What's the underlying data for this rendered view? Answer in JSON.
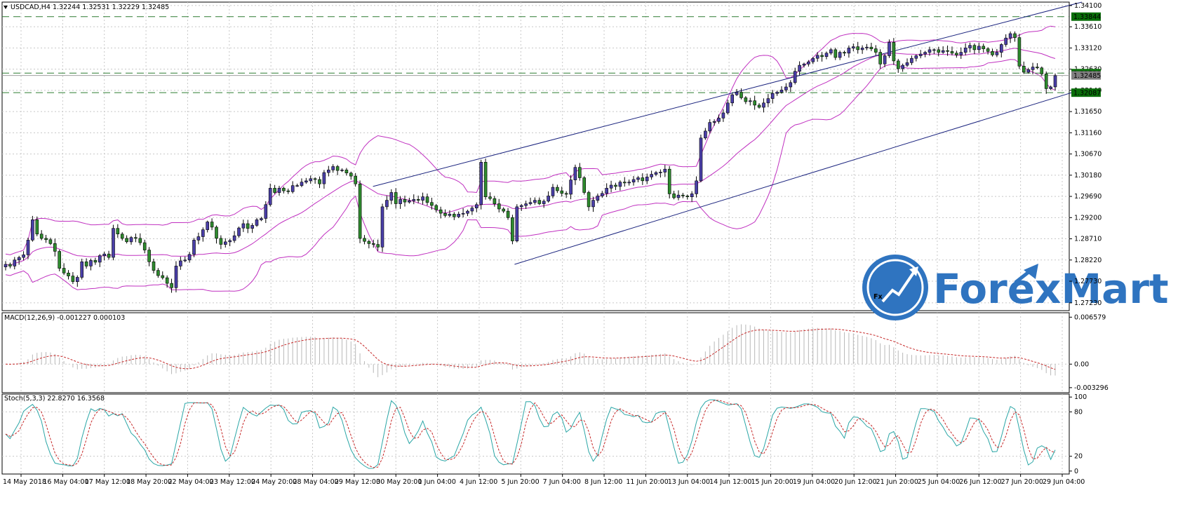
{
  "chart_data": {
    "type": "candlestick",
    "symbol": "USDCAD,H4",
    "ohlc_header": "1.32244 1.32531 1.32229 1.32485",
    "title": "USDCAD,H4  1.32244 1.32531 1.32229 1.32485",
    "price_ylim": [
      1.2705,
      1.3418
    ],
    "price_ticks": [
      "1.34100",
      "1.33610",
      "1.33120",
      "1.32630",
      "1.32140",
      "1.31650",
      "1.31160",
      "1.30670",
      "1.30180",
      "1.29690",
      "1.29200",
      "1.28710",
      "1.28220",
      "1.27730",
      "1.27230"
    ],
    "price_tick_values": [
      1.341,
      1.3361,
      1.3312,
      1.3263,
      1.3214,
      1.3165,
      1.3116,
      1.3067,
      1.3018,
      1.2969,
      1.292,
      1.2871,
      1.2822,
      1.2773,
      1.2723
    ],
    "price_labels": [
      {
        "text": "1.33844",
        "value": 1.33844,
        "color": "#0a6e0a"
      },
      {
        "text": "1.32539",
        "value": 1.32539,
        "color": "#0a6e0a"
      },
      {
        "text": "1.32485",
        "value": 1.32485,
        "color": "#808080"
      },
      {
        "text": "1.32087",
        "value": 1.32087,
        "color": "#0a6e0a"
      }
    ],
    "horizontal_levels": [
      1.33844,
      1.32539,
      1.32087
    ],
    "current_price": 1.32485,
    "channel_lines": [
      {
        "from": [
          "30 May 04:00",
          1.2992
        ],
        "to": [
          "29 Jun 04:00",
          1.3418
        ]
      },
      {
        "from": [
          "5 Jun 08:00",
          1.2812
        ],
        "to": [
          "29 Jun 04:00",
          1.3216
        ]
      }
    ],
    "x_labels": [
      "14 May 2018",
      "16 May 04:00",
      "17 May 12:00",
      "18 May 20:00",
      "22 May 04:00",
      "23 May 12:00",
      "24 May 20:00",
      "28 May 04:00",
      "29 May 12:00",
      "30 May 20:00",
      "1 Jun 04:00",
      "4 Jun 12:00",
      "5 Jun 20:00",
      "7 Jun 04:00",
      "8 Jun 12:00",
      "11 Jun 20:00",
      "13 Jun 04:00",
      "14 Jun 12:00",
      "15 Jun 20:00",
      "19 Jun 04:00",
      "20 Jun 12:00",
      "21 Jun 20:00",
      "25 Jun 04:00",
      "26 Jun 12:00",
      "27 Jun 20:00",
      "29 Jun 04:00"
    ],
    "candles_close": [
      1.2812,
      1.2808,
      1.2822,
      1.2828,
      1.2834,
      1.2868,
      1.2915,
      1.2882,
      1.2872,
      1.2869,
      1.286,
      1.2842,
      1.2803,
      1.2792,
      1.2785,
      1.2772,
      1.2782,
      1.2818,
      1.2808,
      1.2821,
      1.2817,
      1.2832,
      1.2836,
      1.2828,
      1.2895,
      1.2882,
      1.2872,
      1.2864,
      1.2874,
      1.2872,
      1.2862,
      1.2845,
      1.2818,
      1.2798,
      1.2786,
      1.2781,
      1.2768,
      1.2758,
      1.2808,
      1.282,
      1.2822,
      1.2835,
      1.2868,
      1.2876,
      1.2892,
      1.291,
      1.2898,
      1.2872,
      1.2858,
      1.2864,
      1.2867,
      1.2878,
      1.2896,
      1.2906,
      1.2895,
      1.2902,
      1.2915,
      1.2918,
      1.295,
      1.2988,
      1.2978,
      1.2988,
      1.2982,
      1.298,
      1.2994,
      1.2994,
      1.3002,
      1.3005,
      1.301,
      1.3008,
      1.2998,
      1.3024,
      1.303,
      1.3038,
      1.3029,
      1.303,
      1.3023,
      1.3016,
      1.2998,
      1.2872,
      1.2865,
      1.286,
      1.2858,
      1.2852,
      1.2945,
      1.296,
      1.2978,
      1.2952,
      1.2962,
      1.2956,
      1.2959,
      1.2962,
      1.296,
      1.2968,
      1.2955,
      1.2948,
      1.2938,
      1.293,
      1.2925,
      1.2928,
      1.2922,
      1.2928,
      1.293,
      1.2935,
      1.2942,
      1.295,
      1.3048,
      1.2968,
      1.2964,
      1.2952,
      1.294,
      1.2935,
      1.292,
      1.2866,
      1.2945,
      1.2948,
      1.2952,
      1.2955,
      1.296,
      1.2952,
      1.2958,
      1.297,
      1.299,
      1.2982,
      1.2976,
      1.2974,
      1.3007,
      1.3036,
      1.3012,
      1.2978,
      1.2945,
      1.296,
      1.297,
      1.2976,
      1.2988,
      1.2995,
      1.2992,
      1.3002,
      1.3,
      1.3002,
      1.3008,
      1.3012,
      1.3005,
      1.3014,
      1.302,
      1.3024,
      1.3025,
      1.3032,
      1.2975,
      1.2966,
      1.2972,
      1.297,
      1.2968,
      1.2975,
      1.3005,
      1.3104,
      1.312,
      1.314,
      1.3142,
      1.315,
      1.3162,
      1.3185,
      1.3204,
      1.321,
      1.3197,
      1.3188,
      1.319,
      1.318,
      1.3175,
      1.3185,
      1.3195,
      1.3207,
      1.321,
      1.3215,
      1.3222,
      1.3232,
      1.3258,
      1.3272,
      1.3275,
      1.328,
      1.3288,
      1.3295,
      1.3292,
      1.33,
      1.3308,
      1.329,
      1.3302,
      1.33,
      1.3312,
      1.3315,
      1.3308,
      1.3312,
      1.3314,
      1.331,
      1.3302,
      1.3275,
      1.3294,
      1.3325,
      1.3282,
      1.3264,
      1.3272,
      1.3278,
      1.3288,
      1.3294,
      1.3298,
      1.3302,
      1.3308,
      1.3308,
      1.3302,
      1.3306,
      1.3304,
      1.33,
      1.3296,
      1.3302,
      1.3312,
      1.3318,
      1.3308,
      1.3316,
      1.331,
      1.3304,
      1.3296,
      1.3302,
      1.332,
      1.3335,
      1.3345,
      1.3336,
      1.327,
      1.3256,
      1.3262,
      1.3268,
      1.3266,
      1.3252,
      1.3218,
      1.3222,
      1.3248
    ],
    "indicator_bands": "Bollinger Bands",
    "macd": {
      "title": "MACD(12,26,9) -0.001227 0.000103",
      "ticks": [
        "0.006579",
        "0.00",
        "-0.003296"
      ],
      "tick_values": [
        0.006579,
        0.0,
        -0.003296
      ],
      "ylim": [
        -0.004,
        0.0072
      ]
    },
    "stoch": {
      "title": "Stoch(5,3,3) 22.8270 16.3568",
      "ticks": [
        "100",
        "80",
        "20",
        "0"
      ],
      "tick_values": [
        100,
        80,
        20,
        0
      ],
      "ylim": [
        -4,
        104
      ]
    },
    "grid": true,
    "legend": "none"
  },
  "logo": {
    "fx_mark": "Fx",
    "wordmark": "ForexMart"
  },
  "colors": {
    "bull": "#4a3fa8",
    "bear": "#2e8b2e",
    "bands": "#c030c0",
    "channel": "#1a237e",
    "level": "#2e7d32",
    "macd_hist": "#b8b8b8",
    "macd_signal": "#c62828",
    "stoch_main": "#2aa6a6",
    "stoch_signal": "#c62828",
    "logo": "#2f74c0"
  }
}
